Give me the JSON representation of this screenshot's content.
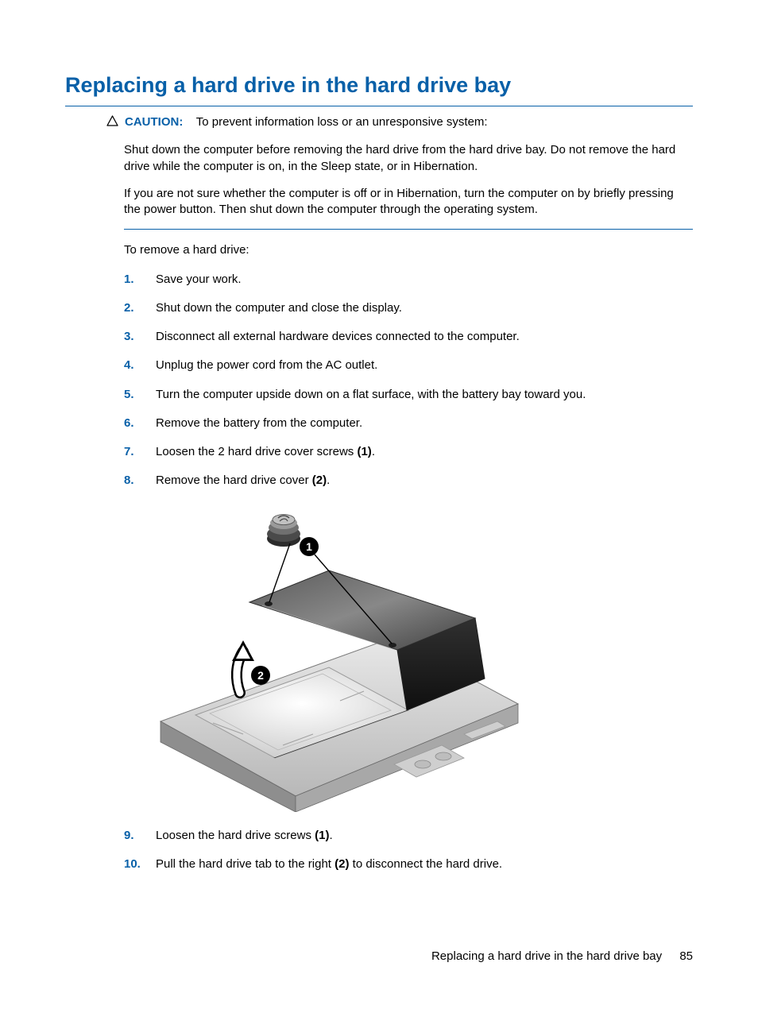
{
  "colors": {
    "accent": "#0860a8",
    "hr": "#0860a8",
    "text": "#000000",
    "bg": "#ffffff"
  },
  "title": "Replacing a hard drive in the hard drive bay",
  "caution": {
    "label": "CAUTION:",
    "text": "To prevent information loss or an unresponsive system:",
    "paras": [
      "Shut down the computer before removing the hard drive from the hard drive bay. Do not remove the hard drive while the computer is on, in the Sleep state, or in Hibernation.",
      "If you are not sure whether the computer is off or in Hibernation, turn the computer on by briefly pressing the power button. Then shut down the computer through the operating system."
    ]
  },
  "intro": "To remove a hard drive:",
  "steps_before": [
    {
      "n": "1.",
      "text": "Save your work."
    },
    {
      "n": "2.",
      "text": "Shut down the computer and close the display."
    },
    {
      "n": "3.",
      "text": "Disconnect all external hardware devices connected to the computer."
    },
    {
      "n": "4.",
      "text": "Unplug the power cord from the AC outlet."
    },
    {
      "n": "5.",
      "text": "Turn the computer upside down on a flat surface, with the battery bay toward you."
    },
    {
      "n": "6.",
      "text": "Remove the battery from the computer."
    },
    {
      "n": "7.",
      "text": "Loosen the 2 hard drive cover screws ",
      "bold": "(1)",
      "after": "."
    },
    {
      "n": "8.",
      "text": "Remove the hard drive cover ",
      "bold": "(2)",
      "after": "."
    }
  ],
  "steps_after": [
    {
      "n": "9.",
      "text": "Loosen the hard drive screws ",
      "bold": "(1)",
      "after": "."
    },
    {
      "n": "10.",
      "text": "Pull the hard drive tab to the right ",
      "bold": "(2)",
      "after": " to disconnect the hard drive."
    }
  ],
  "figure": {
    "callouts": [
      "1",
      "2"
    ]
  },
  "footer": {
    "label": "Replacing a hard drive in the hard drive bay",
    "page": "85"
  }
}
